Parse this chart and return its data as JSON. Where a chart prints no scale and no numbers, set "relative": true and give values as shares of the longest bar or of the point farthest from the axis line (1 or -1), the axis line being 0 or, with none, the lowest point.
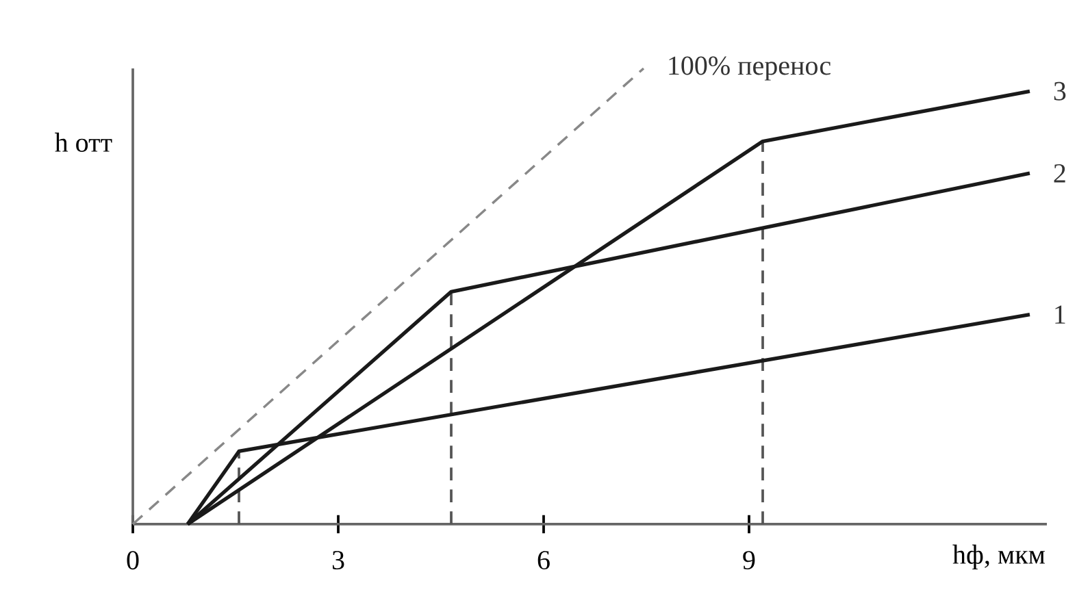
{
  "chart_data": {
    "type": "line",
    "relative": true,
    "xlabel": "hф, мкм",
    "ylabel": "h отт",
    "xlim": [
      0,
      13.35
    ],
    "xticks": [
      0,
      3,
      6,
      9
    ],
    "series": [
      {
        "name": "1",
        "color": "#1a1a1a",
        "x": [
          0.8,
          1.55,
          13.1
        ],
        "values": [
          0,
          0.16,
          0.46
        ]
      },
      {
        "name": "2",
        "color": "#1a1a1a",
        "x": [
          0.8,
          4.65,
          13.1
        ],
        "values": [
          0,
          0.51,
          0.77
        ]
      },
      {
        "name": "3",
        "color": "#1a1a1a",
        "x": [
          0.8,
          9.2,
          13.1
        ],
        "values": [
          0,
          0.84,
          0.95
        ]
      },
      {
        "name": "100% перенос",
        "color": "#888888",
        "line_style": "dashed",
        "x": [
          0,
          7.46
        ],
        "values": [
          0,
          1
        ]
      }
    ],
    "ref_lines": [
      {
        "axis": "x",
        "value": 1.55,
        "color": "#555555",
        "line_style": "dashed"
      },
      {
        "axis": "x",
        "value": 4.65,
        "color": "#555555",
        "line_style": "dashed"
      },
      {
        "axis": "x",
        "value": 9.2,
        "color": "#555555",
        "line_style": "dashed"
      }
    ],
    "grid": false
  }
}
